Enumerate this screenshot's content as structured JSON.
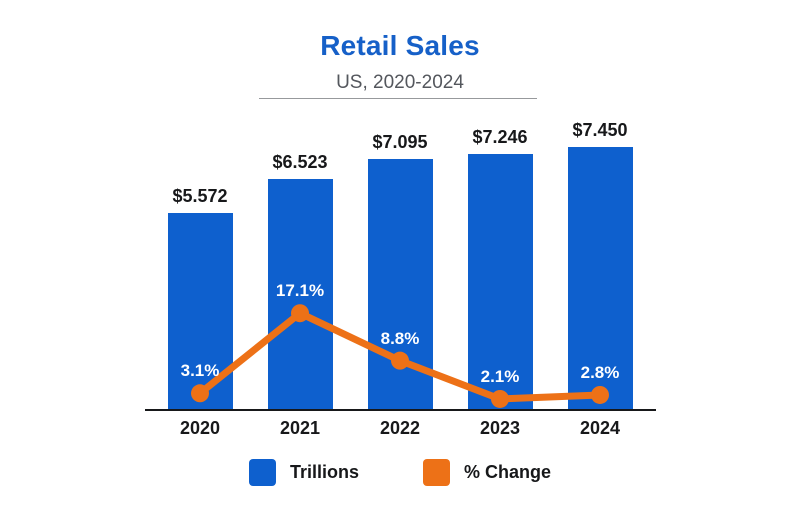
{
  "header": {
    "title": "Retail Sales",
    "subtitle": "US, 2020-2024"
  },
  "chart_data": {
    "type": "combo",
    "title": "Retail Sales",
    "subtitle": "US, 2020-2024",
    "categories": [
      "2020",
      "2021",
      "2022",
      "2023",
      "2024"
    ],
    "series": [
      {
        "name": "Trillions",
        "type": "bar",
        "unit": "USD trillions",
        "values": [
          5.572,
          6.523,
          7.095,
          7.246,
          7.45
        ],
        "labels": [
          "$5.572",
          "$6.523",
          "$7.095",
          "$7.246",
          "$7.450"
        ],
        "color": "#0e60ce"
      },
      {
        "name": "% Change",
        "type": "line",
        "unit": "percent",
        "values": [
          3.1,
          17.1,
          8.8,
          2.1,
          2.8
        ],
        "labels": [
          "3.1%",
          "17.1%",
          "8.8%",
          "2.1%",
          "2.8%"
        ],
        "color": "#ed7117"
      }
    ],
    "xlabel": "",
    "ylabel": "",
    "grid": false,
    "legend_position": "bottom",
    "legend": [
      {
        "label": "Trillions",
        "color": "#0e60ce"
      },
      {
        "label": "% Change",
        "color": "#ed7117"
      }
    ]
  },
  "colors": {
    "title_blue": "#1660c8",
    "bar_blue": "#0e60ce",
    "line_orange": "#ed7117",
    "subtitle_gray": "#54575d",
    "text_dark": "#17181a",
    "divider_gray": "#97999c",
    "background": "#ffffff",
    "pct_label_white": "#ffffff"
  }
}
